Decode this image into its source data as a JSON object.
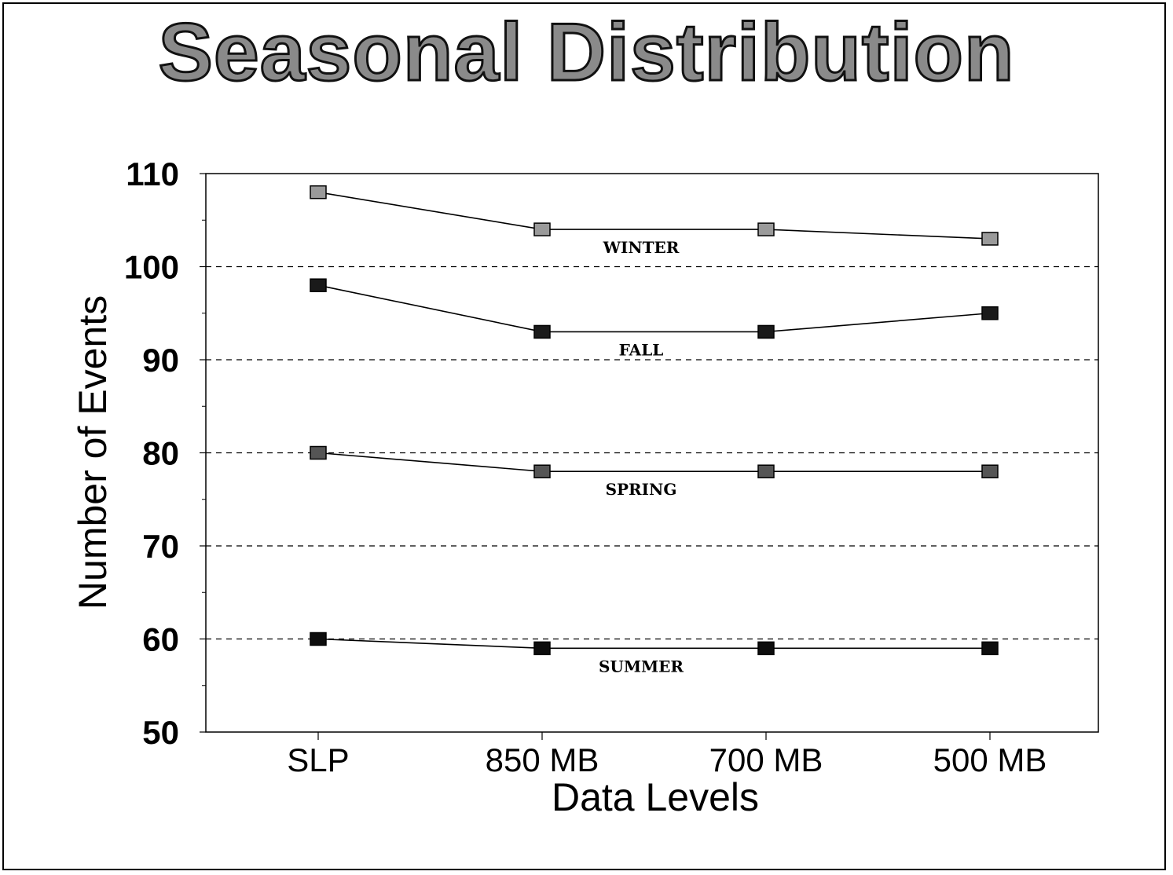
{
  "chart_data": {
    "type": "line",
    "title": "Seasonal Distribution",
    "xlabel": "Data Levels",
    "ylabel": "Number of Events",
    "categories": [
      "SLP",
      "850 MB",
      "700 MB",
      "500 MB"
    ],
    "ylim": [
      50,
      110
    ],
    "yticks": [
      50,
      60,
      70,
      80,
      90,
      100,
      110
    ],
    "grid_lines": [
      60,
      70,
      80,
      90,
      100
    ],
    "series": [
      {
        "name": "WINTER",
        "values": [
          108,
          104,
          104,
          103
        ],
        "color": "#9a9a9a"
      },
      {
        "name": "FALL",
        "values": [
          98,
          93,
          93,
          95
        ],
        "color": "#1a1a1a"
      },
      {
        "name": "SPRING",
        "values": [
          80,
          78,
          78,
          78
        ],
        "color": "#555555"
      },
      {
        "name": "SUMMER",
        "values": [
          60,
          59,
          59,
          59
        ],
        "color": "#0d0d0d"
      }
    ]
  }
}
